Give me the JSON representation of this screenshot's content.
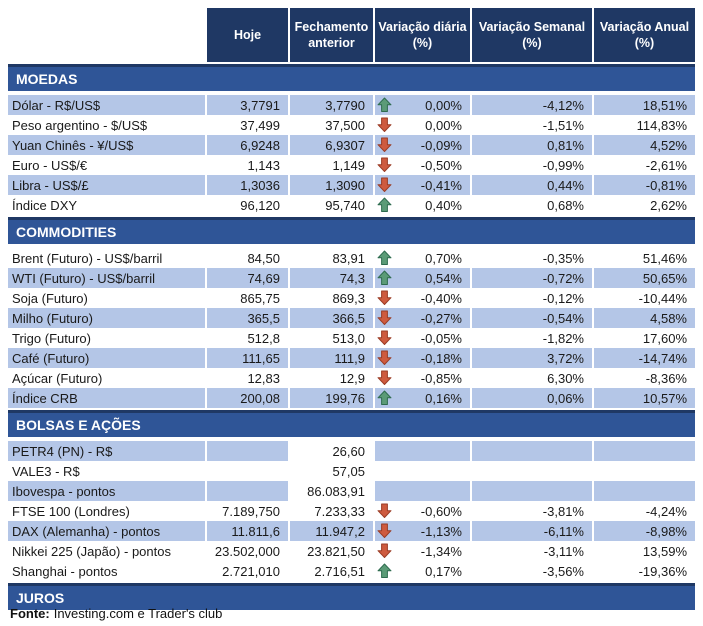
{
  "table": {
    "columns": [
      "Hoje",
      "Fechamento anterior",
      "Variação diária (%)",
      "Variação Semanal (%)",
      "Variação Anual (%)"
    ],
    "sections": [
      {
        "title": "MOEDAS",
        "rows": [
          {
            "label": "Dólar - R$/US$",
            "hoje": "3,7791",
            "fechamento": "3,7790",
            "arrow": "up",
            "diaria": "0,00%",
            "semanal": "-4,12%",
            "anual": "18,51%",
            "shaded": true
          },
          {
            "label": "Peso argentino - $/US$",
            "hoje": "37,499",
            "fechamento": "37,500",
            "arrow": "down",
            "diaria": "0,00%",
            "semanal": "-1,51%",
            "anual": "114,83%",
            "shaded": false
          },
          {
            "label": "Yuan Chinês - ¥/US$",
            "hoje": "6,9248",
            "fechamento": "6,9307",
            "arrow": "down",
            "diaria": "-0,09%",
            "semanal": "0,81%",
            "anual": "4,52%",
            "shaded": true
          },
          {
            "label": "Euro - US$/€",
            "hoje": "1,143",
            "fechamento": "1,149",
            "arrow": "down",
            "diaria": "-0,50%",
            "semanal": "-0,99%",
            "anual": "-2,61%",
            "shaded": false
          },
          {
            "label": "Libra - US$/£",
            "hoje": "1,3036",
            "fechamento": "1,3090",
            "arrow": "down",
            "diaria": "-0,41%",
            "semanal": "0,44%",
            "anual": "-0,81%",
            "shaded": true
          },
          {
            "label": "Índice DXY",
            "hoje": "96,120",
            "fechamento": "95,740",
            "arrow": "up",
            "diaria": "0,40%",
            "semanal": "0,68%",
            "anual": "2,62%",
            "shaded": false
          }
        ]
      },
      {
        "title": "COMMODITIES",
        "rows": [
          {
            "label": "Brent (Futuro) - US$/barril",
            "hoje": "84,50",
            "fechamento": "83,91",
            "arrow": "up",
            "diaria": "0,70%",
            "semanal": "-0,35%",
            "anual": "51,46%",
            "shaded": false
          },
          {
            "label": "WTI (Futuro) - US$/barril",
            "hoje": "74,69",
            "fechamento": "74,3",
            "arrow": "up",
            "diaria": "0,54%",
            "semanal": "-0,72%",
            "anual": "50,65%",
            "shaded": true
          },
          {
            "label": "Soja (Futuro)",
            "hoje": "865,75",
            "fechamento": "869,3",
            "arrow": "down",
            "diaria": "-0,40%",
            "semanal": "-0,12%",
            "anual": "-10,44%",
            "shaded": false
          },
          {
            "label": "Milho (Futuro)",
            "hoje": "365,5",
            "fechamento": "366,5",
            "arrow": "down",
            "diaria": "-0,27%",
            "semanal": "-0,54%",
            "anual": "4,58%",
            "shaded": true
          },
          {
            "label": "Trigo (Futuro)",
            "hoje": "512,8",
            "fechamento": "513,0",
            "arrow": "down",
            "diaria": "-0,05%",
            "semanal": "-1,82%",
            "anual": "17,60%",
            "shaded": false
          },
          {
            "label": "Café (Futuro)",
            "hoje": "111,65",
            "fechamento": "111,9",
            "arrow": "down",
            "diaria": "-0,18%",
            "semanal": "3,72%",
            "anual": "-14,74%",
            "shaded": true
          },
          {
            "label": "Açúcar (Futuro)",
            "hoje": "12,83",
            "fechamento": "12,9",
            "arrow": "down",
            "diaria": "-0,85%",
            "semanal": "6,30%",
            "anual": "-8,36%",
            "shaded": false
          },
          {
            "label": "Índice CRB",
            "hoje": "200,08",
            "fechamento": "199,76",
            "arrow": "up",
            "diaria": "0,16%",
            "semanal": "0,06%",
            "anual": "10,57%",
            "shaded": true
          }
        ]
      },
      {
        "title": "BOLSAS E AÇÕES",
        "rows": [
          {
            "label": "PETR4 (PN) - R$",
            "hoje": "",
            "fechamento": "26,60",
            "arrow": "",
            "diaria": "",
            "semanal": "",
            "anual": "",
            "shaded": true,
            "fech_plain": true
          },
          {
            "label": "VALE3 - R$",
            "hoje": "",
            "fechamento": "57,05",
            "arrow": "",
            "diaria": "",
            "semanal": "",
            "anual": "",
            "shaded": false
          },
          {
            "label": "Ibovespa - pontos",
            "hoje": "",
            "fechamento": "86.083,91",
            "arrow": "",
            "diaria": "",
            "semanal": "",
            "anual": "",
            "shaded": true,
            "fech_plain": true
          },
          {
            "label": "FTSE 100 (Londres)",
            "hoje": "7.189,750",
            "fechamento": "7.233,33",
            "arrow": "down",
            "diaria": "-0,60%",
            "semanal": "-3,81%",
            "anual": "-4,24%",
            "shaded": false
          },
          {
            "label": "DAX (Alemanha) - pontos",
            "hoje": "11.811,6",
            "fechamento": "11.947,2",
            "arrow": "down",
            "diaria": "-1,13%",
            "semanal": "-6,11%",
            "anual": "-8,98%",
            "shaded": true
          },
          {
            "label": "Nikkei 225 (Japão) - pontos",
            "hoje": "23.502,000",
            "fechamento": "23.821,50",
            "arrow": "down",
            "diaria": "-1,34%",
            "semanal": "-3,11%",
            "anual": "13,59%",
            "shaded": false
          },
          {
            "label": "Shanghai - pontos",
            "hoje": "2.721,010",
            "fechamento": "2.716,51",
            "arrow": "up",
            "diaria": "0,17%",
            "semanal": "-3,56%",
            "anual": "-19,36%",
            "shaded": false
          }
        ]
      },
      {
        "title": "JUROS",
        "rows": []
      }
    ]
  },
  "footer": {
    "source_label": "Fonte:",
    "source_text": "Investing.com e Trader's club"
  },
  "colors": {
    "header_navy": "#1F3864",
    "section_band_blue": "#2F5597",
    "row_light_blue": "#B4C6E7",
    "arrow_up_fill": "#5B9B77",
    "arrow_up_stroke": "#2E6B4F",
    "arrow_down_fill": "#CE5B3F",
    "arrow_down_stroke": "#9A3B24"
  }
}
